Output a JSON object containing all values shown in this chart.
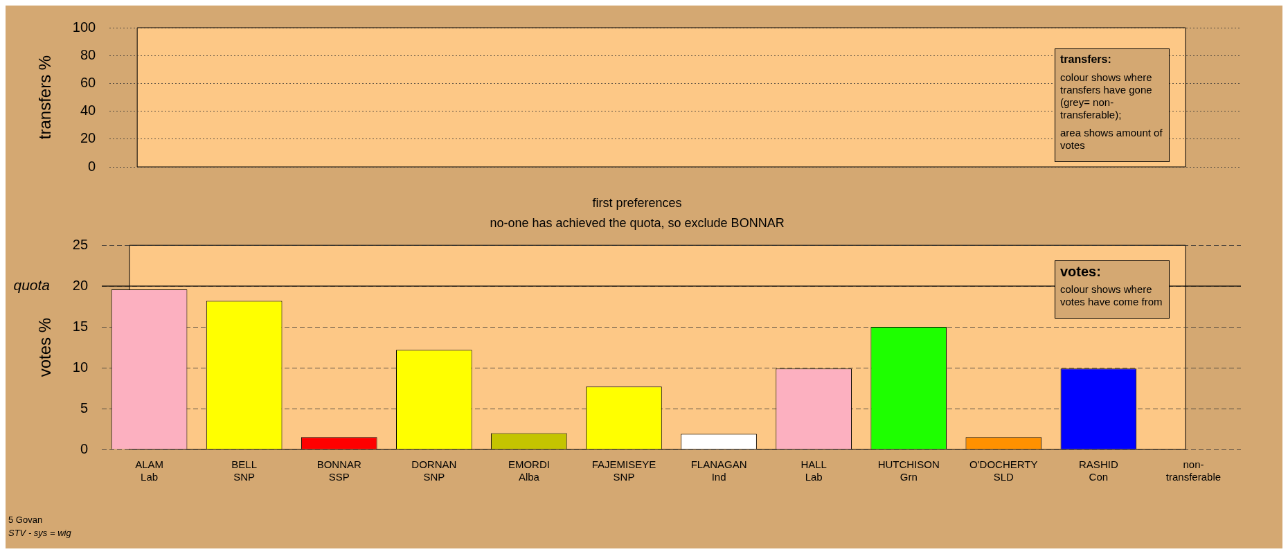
{
  "chart_data": [
    {
      "type": "bar",
      "ylabel": "transfers %",
      "categories": [
        null,
        null,
        null,
        null,
        null,
        null,
        null,
        null,
        null,
        null,
        null,
        null
      ],
      "values": [
        null,
        null,
        null,
        null,
        null,
        null,
        null,
        null,
        null,
        null,
        null,
        null
      ],
      "ylim": [
        0,
        100
      ],
      "yticks": [
        0,
        20,
        40,
        60,
        80,
        100
      ],
      "grid": "y",
      "tick_labels": "y",
      "annotations": [
        "transfers:",
        "colour shows where transfers have gone (grey= non-transferable);",
        "area shows amount of votes"
      ]
    },
    {
      "type": "bar",
      "title": "first preferences",
      "subtitle": "no-one has achieved the quota, so exclude BONNAR",
      "ylabel": "votes %",
      "categories": [
        "ALAM\nLab",
        "BELL\nSNP",
        "BONNAR\nSSP",
        "DORNAN\nSNP",
        "EMORDI\nAlba",
        "FAJEMISEYE\nSNP",
        "FLANAGAN\nInd",
        "HALL\nLab",
        "HUTCHISON\nGrn",
        "O'DOCHERTY\nSLD",
        "RASHID\nCon",
        "non-\ntransferable"
      ],
      "values": [
        19.6,
        18.2,
        1.5,
        12.2,
        2.0,
        7.7,
        1.9,
        9.9,
        15.0,
        1.5,
        9.9,
        null
      ],
      "colors": [
        "#fcb0c0",
        "#ffff00",
        "#ff0000",
        "#ffff00",
        "#c4c400",
        "#ffff00",
        "#ffffff",
        "#fcb0c0",
        "#1eff00",
        "#ff9100",
        "#0000ff",
        "#808080"
      ],
      "ylim": [
        0,
        25
      ],
      "yticks": [
        0,
        5,
        10,
        15,
        20,
        25
      ],
      "grid": "y",
      "ref_lines": [
        {
          "axis": "y",
          "value": 20,
          "label": "quota"
        }
      ],
      "annotations": [
        "votes:",
        "colour shows where votes have come from",
        "5 Govan",
        "STV - sys = wig"
      ]
    }
  ]
}
